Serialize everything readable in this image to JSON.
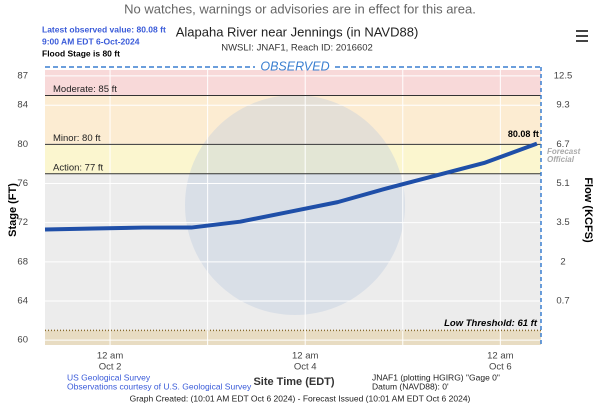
{
  "banner": "No watches, warnings or advisories are in effect for this area.",
  "chart_data": {
    "type": "line",
    "latest": [
      "Latest observed value: 80.08 ft",
      "9:00 AM EDT 6-Oct-2024"
    ],
    "flood_stage": "Flood Stage is 80 ft",
    "title": "Alapaha River near Jennings (in NAVD88)",
    "subtitle": "NWSLI: JNAF1, Reach ID: 2016602",
    "section_label": "OBSERVED",
    "y_label": "Stage (FT)",
    "y2_label": "Flow (KCFS)",
    "x_label": "Site Time (EDT)",
    "watermark": [
      "Forecast",
      "Official"
    ],
    "xlim": [
      "Oct 1 8 am",
      "Oct 6 10 am"
    ],
    "xticks": [
      {
        "value": "Oct 2 12 am",
        "label": [
          "12 am",
          "Oct 2"
        ]
      },
      {
        "value": "Oct 3 12 am",
        "label": null
      },
      {
        "value": "Oct 4 12 am",
        "label": [
          "12 am",
          "Oct 4"
        ]
      },
      {
        "value": "Oct 5 12 am",
        "label": null
      },
      {
        "value": "Oct 6 12 am",
        "label": [
          "12 am",
          "Oct 6"
        ]
      }
    ],
    "ylim": [
      59.5,
      87.6
    ],
    "yticks": [
      60,
      64,
      68,
      72,
      76,
      80,
      84,
      87
    ],
    "y2ticks": [
      12.5,
      9.3,
      6.7,
      5.1,
      3.5,
      2,
      0.7
    ],
    "plot_color": "#ececec",
    "thresholds": [
      {
        "label": "Action: 77 ft",
        "value": 77,
        "color": "#fbf6cf"
      },
      {
        "label": "Minor: 80 ft",
        "value": 80,
        "color": "#fcecd2"
      },
      {
        "label": "Moderate: 85 ft",
        "value": 85,
        "color": "#f8d9d9"
      }
    ],
    "low_threshold": {
      "label": "Low Threshold: 61 ft",
      "value": 61,
      "color": "#e8dcc2"
    },
    "x": [
      "Oct 1 8 am",
      "Oct 1 8 pm",
      "Oct 2 8 am",
      "Oct 2 8 pm",
      "Oct 3 8 am",
      "Oct 3 8 pm",
      "Oct 4 8 am",
      "Oct 4 8 pm",
      "Oct 5 8 am",
      "Oct 5 8 pm",
      "Oct 6 9 am"
    ],
    "series": [
      {
        "name": "Observed",
        "color": "#1f4fa8",
        "values": [
          71.3,
          71.4,
          71.5,
          71.5,
          72.1,
          73.1,
          74.1,
          75.5,
          76.8,
          78.1,
          80.08
        ],
        "value_labels": [
          null,
          null,
          null,
          null,
          null,
          null,
          null,
          null,
          null,
          null,
          "80.08 ft"
        ]
      }
    ]
  },
  "footer": {
    "source": [
      "US Geological Survey",
      "Observations courtesy of U.S. Geological Survey"
    ],
    "gage": [
      "JNAF1 (plotting HGIRG) \"Gage 0\"",
      "Datum (NAVD88): 0'"
    ],
    "created": "Graph Created: (10:01 AM EDT Oct 6 2024) - Forecast Issued (10:01 AM EDT Oct 6 2024)"
  }
}
